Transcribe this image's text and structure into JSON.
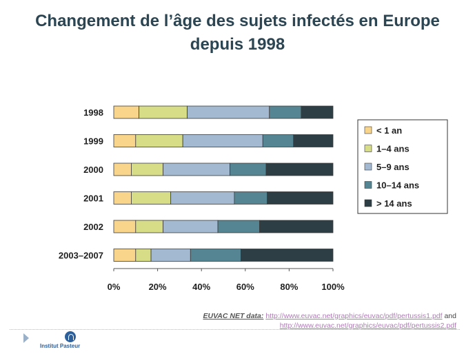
{
  "title": {
    "line1": "Changement de l’âge des sujets infectés en Europe",
    "line2": "depuis 1998"
  },
  "chart_data": {
    "type": "bar",
    "orientation": "horizontal",
    "stacked": true,
    "normalized": true,
    "categories": [
      "1998",
      "1999",
      "2000",
      "2001",
      "2002",
      "2003–2007"
    ],
    "series": [
      {
        "name": "< 1 an",
        "color": "#f9d58b",
        "values": [
          11.5,
          10,
          8,
          8,
          10,
          10
        ]
      },
      {
        "name": "1–4 ans",
        "color": "#d6dd86",
        "values": [
          22,
          21.5,
          14.5,
          18,
          12.5,
          7
        ]
      },
      {
        "name": "5–9 ans",
        "color": "#a3b9d1",
        "values": [
          37.5,
          36.5,
          30.5,
          29,
          25,
          18
        ]
      },
      {
        "name": "10–14 ans",
        "color": "#558592",
        "values": [
          14.5,
          14,
          16.5,
          15,
          19,
          23
        ]
      },
      {
        "name": "> 14 ans",
        "color": "#2e3e45",
        "values": [
          14.5,
          18,
          30.5,
          30,
          33.5,
          42
        ]
      }
    ],
    "xticks": [
      "0%",
      "20%",
      "40%",
      "60%",
      "80%",
      "100%"
    ],
    "xlim": [
      0,
      100
    ],
    "legend": "right",
    "grid": false
  },
  "source": {
    "label": "EUVAC NET data:",
    "link1": "http://www.euvac.net/graphics/euvac/pdf/pertussis1.pdf",
    "and": "and",
    "link2": "http://www.euvac.net/graphics/euvac/pdf/pertussis2.pdf"
  },
  "footer": {
    "logo_text": "Institut Pasteur",
    "logo_icon": "pasteur-logo-icon"
  }
}
